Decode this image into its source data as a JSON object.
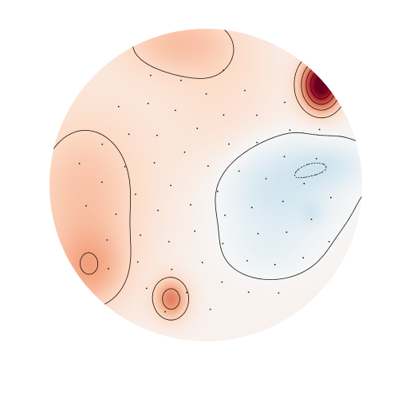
{
  "chart_data": {
    "type": "heatmap",
    "title": "",
    "colormap": [
      "#053061",
      "#2166ac",
      "#4393c3",
      "#92c5de",
      "#d1e5f0",
      "#f7f7f7",
      "#fddbc7",
      "#f4a582",
      "#d6604d",
      "#b2182b",
      "#67001f"
    ],
    "value_range": [
      -1,
      1
    ],
    "contour_levels": [
      -0.2,
      0,
      0.2,
      0.4,
      0.6,
      0.8
    ],
    "colorbar": false,
    "axes_visible": false,
    "sensor_count": 64,
    "features": [
      {
        "name": "right-frontal-maximum",
        "value": 1.0
      },
      {
        "name": "left-temporal-positive",
        "value": 0.25
      },
      {
        "name": "left-occipital-local-peak",
        "value": 0.45
      },
      {
        "name": "right-central-negative",
        "value": -0.25
      }
    ]
  }
}
